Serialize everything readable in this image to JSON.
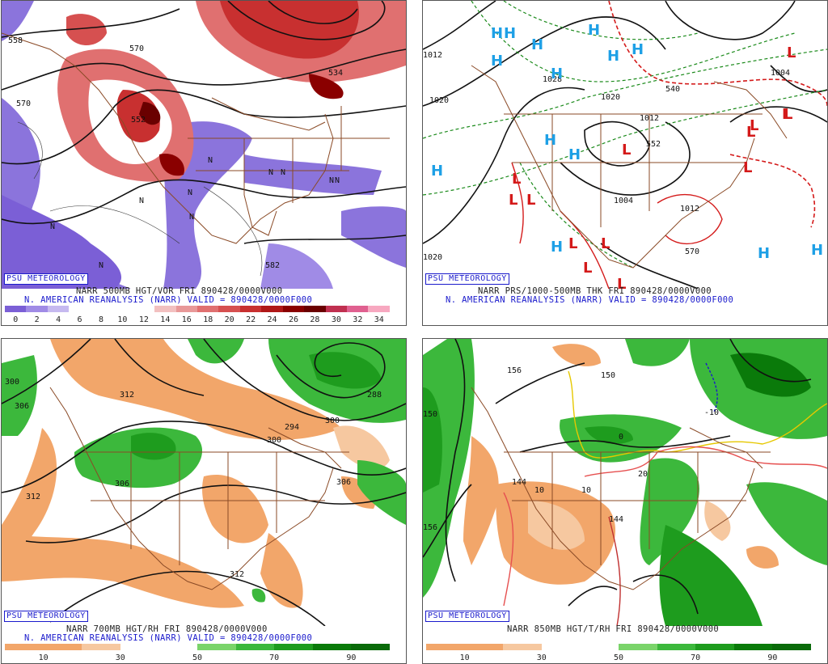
{
  "credit": "PSU METEOROLOGY",
  "panels": {
    "tl": {
      "title": "NARR 500MB HGT/VOR FRI 890428/0000V000",
      "subtitle": "N. AMERICAN REANALYSIS (NARR) VALID = 890428/0000F000",
      "scale_labels": [
        "0",
        "2",
        "4",
        "6",
        "8",
        "10",
        "12",
        "14",
        "16",
        "18",
        "20",
        "22",
        "24",
        "26",
        "28",
        "30",
        "32",
        "34"
      ],
      "contour_labels": [
        "558",
        "570",
        "570",
        "552",
        "582",
        "534"
      ],
      "n_marks": [
        "N",
        "N",
        "N",
        "N",
        "N",
        "N",
        "N",
        "N",
        "N",
        "N"
      ]
    },
    "tr": {
      "title": "NARR PRS/1000-500MB THK FRI 890428/0000V000",
      "subtitle": "N. AMERICAN REANALYSIS (NARR) VALID = 890428/0000F000",
      "contour_labels": [
        "1012",
        "1020",
        "1028",
        "1020",
        "1012",
        "1004",
        "1004",
        "1012",
        "1020",
        "540",
        "570",
        "552"
      ],
      "highs": [
        "H",
        "H",
        "H",
        "H",
        "H",
        "H",
        "H",
        "H",
        "H",
        "H",
        "H",
        "H",
        "H",
        "H"
      ],
      "lows": [
        "L",
        "L",
        "L",
        "L",
        "L",
        "L",
        "L",
        "L",
        "L",
        "L",
        "L",
        "L",
        "L",
        "L"
      ]
    },
    "bl": {
      "title": "NARR 700MB HGT/RH FRI 890428/0000V000",
      "subtitle": "N. AMERICAN REANALYSIS (NARR) VALID = 890428/0000F000",
      "scale_labels": [
        "10",
        "30",
        "50",
        "70",
        "90"
      ],
      "contour_labels": [
        "300",
        "306",
        "312",
        "294",
        "288",
        "300",
        "300",
        "306",
        "306",
        "312",
        "312"
      ]
    },
    "br": {
      "title": "NARR 850MB HGT/T/RH FRI 890428/0000V000",
      "scale_labels": [
        "10",
        "30",
        "50",
        "70",
        "90"
      ],
      "contour_labels": [
        "156",
        "150",
        "144",
        "150",
        "156",
        "-10",
        "0",
        "10",
        "10",
        "20",
        "144"
      ]
    }
  },
  "colors": {
    "vort_scale": [
      "#7b5fd6",
      "#a08be6",
      "#c6b9f0",
      "#ffffff",
      "#ffffff",
      "#ffffff",
      "#ffffff",
      "#f2c0c0",
      "#e89898",
      "#e07070",
      "#d65050",
      "#c83030",
      "#b01818",
      "#8a0000",
      "#6a0000",
      "#c03050",
      "#e06090",
      "#f7a8c0"
    ],
    "rh_scale": [
      "#f2a66a",
      "#f2a66a",
      "#f6c8a0",
      "#ffffff",
      "#ffffff",
      "#7ad46a",
      "#3cb83c",
      "#1e9c1e",
      "#0a7a0a",
      "#0a6a0a"
    ]
  }
}
